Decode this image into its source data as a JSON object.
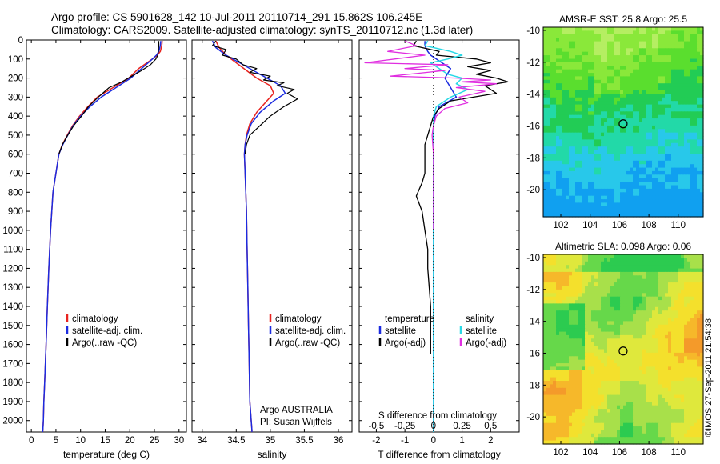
{
  "header": {
    "line1": "Argo profile: CS 5901628_142 10-Jul-2011 20110714_291 15.862S 106.245E",
    "line2": "Climatology: CARS2009. Satellite-adjusted climatology: synTS_20110712.nc (1.3d later)"
  },
  "stamp": "©IMOS 27-Sep-2011 21:54:38",
  "colors": {
    "climatology": "#e8231f",
    "satellite": "#1b2be0",
    "argo": "#000000",
    "sal_satellite": "#29d9e6",
    "sal_argo": "#e02ee0"
  },
  "chart_data": [
    {
      "type": "line",
      "panel": "temperature",
      "xlabel": "temperature (deg C)",
      "ylabel": "",
      "xlim": [
        -1,
        31.5
      ],
      "ylim": [
        2060,
        0
      ],
      "xticks": [
        0,
        5,
        10,
        15,
        20,
        25,
        30
      ],
      "yticks": [
        0,
        100,
        200,
        300,
        400,
        500,
        600,
        700,
        800,
        900,
        1000,
        1100,
        1200,
        1300,
        1400,
        1500,
        1600,
        1700,
        1800,
        1900,
        2000
      ],
      "legend": {
        "placement": "lower-middle",
        "entries": [
          "climatology",
          "satellite-adj. clim.",
          "Argo(..raw -QC)"
        ]
      },
      "series": [
        {
          "name": "climatology",
          "color": "#e8231f",
          "width": 1.5,
          "x": [
            26.6,
            26.5,
            26.2,
            25.6,
            24.6,
            21.8,
            19.8,
            16.6,
            13.4,
            11.5,
            9.8,
            8.4,
            7.3,
            6.3,
            5.6,
            4.4,
            3.9,
            3.55,
            3.25,
            3.0,
            2.7,
            2.55,
            2.45,
            2.35,
            2.3
          ],
          "y": [
            5,
            30,
            60,
            80,
            100,
            150,
            200,
            250,
            300,
            350,
            400,
            450,
            500,
            550,
            600,
            800,
            1000,
            1200,
            1400,
            1600,
            1800,
            1900,
            2000,
            2050,
            2060
          ]
        },
        {
          "name": "satellite-adj. clim.",
          "color": "#1b2be0",
          "width": 1.5,
          "x": [
            26.3,
            26.2,
            25.9,
            25.4,
            24.6,
            22.4,
            20.2,
            17.2,
            14.2,
            11.9,
            10.0,
            8.5,
            7.4,
            6.4,
            5.6,
            4.4,
            3.9,
            3.55,
            3.25,
            3.0,
            2.7,
            2.55,
            2.45,
            2.35,
            2.3
          ],
          "y": [
            5,
            30,
            60,
            80,
            100,
            150,
            200,
            250,
            300,
            350,
            400,
            450,
            500,
            550,
            600,
            800,
            1000,
            1200,
            1400,
            1600,
            1800,
            1900,
            2000,
            2050,
            2060
          ]
        },
        {
          "name": "Argo(..raw -QC)",
          "color": "#000000",
          "width": 1.2,
          "x": [
            25.9,
            25.9,
            25.8,
            25.7,
            25.3,
            24.2,
            22.4,
            20.4,
            18.4,
            15.8,
            13.6,
            11.6,
            10.2,
            8.6,
            7.4,
            6.3,
            5.6
          ],
          "y": [
            5,
            30,
            60,
            80,
            100,
            130,
            160,
            190,
            220,
            250,
            300,
            350,
            400,
            450,
            500,
            550,
            600
          ]
        }
      ]
    },
    {
      "type": "line",
      "panel": "salinity",
      "xlabel": "salinity",
      "xlim": [
        33.85,
        36.2
      ],
      "ylim": [
        2060,
        0
      ],
      "xticks": [
        34,
        34.5,
        35,
        35.5,
        36
      ],
      "legend": {
        "placement": "lower-right",
        "entries": [
          "climatology",
          "satellite-adj. clim.",
          "Argo(..raw -QC)"
        ]
      },
      "annotation": [
        "Argo AUSTRALIA",
        "PI: Susan Wijffels"
      ],
      "series": [
        {
          "name": "climatology",
          "color": "#e8231f",
          "width": 1.5,
          "x": [
            34.2,
            34.25,
            34.35,
            34.5,
            34.65,
            34.8,
            35.0,
            35.05,
            34.95,
            34.8,
            34.7,
            34.65,
            34.63,
            34.62,
            34.63,
            34.65,
            34.66,
            34.67,
            34.68,
            34.69,
            34.7,
            34.72,
            34.73,
            34.73
          ],
          "y": [
            5,
            40,
            80,
            120,
            160,
            200,
            240,
            280,
            320,
            380,
            440,
            500,
            550,
            600,
            700,
            900,
            1100,
            1300,
            1500,
            1700,
            1900,
            2000,
            2050,
            2060
          ]
        },
        {
          "name": "satellite-adj. clim.",
          "color": "#1b2be0",
          "width": 1.5,
          "x": [
            34.15,
            34.2,
            34.35,
            34.55,
            34.75,
            34.95,
            35.15,
            35.22,
            35.05,
            34.85,
            34.72,
            34.66,
            34.63,
            34.62,
            34.63,
            34.65,
            34.66,
            34.67,
            34.68,
            34.69,
            34.7,
            34.72,
            34.73,
            34.73
          ],
          "y": [
            5,
            40,
            80,
            120,
            160,
            200,
            240,
            280,
            320,
            380,
            440,
            500,
            550,
            600,
            700,
            900,
            1100,
            1300,
            1500,
            1700,
            1900,
            2000,
            2050,
            2060
          ]
        },
        {
          "name": "Argo(..raw -QC)",
          "color": "#000000",
          "width": 1.2,
          "x": [
            34.2,
            34.15,
            34.35,
            34.3,
            34.5,
            34.6,
            34.8,
            34.7,
            35.0,
            34.9,
            35.2,
            35.1,
            35.35,
            35.25,
            35.4,
            35.2,
            35.0,
            34.85,
            34.7,
            34.65,
            34.63
          ],
          "y": [
            5,
            30,
            50,
            80,
            100,
            130,
            150,
            170,
            190,
            210,
            225,
            240,
            260,
            280,
            310,
            350,
            400,
            450,
            500,
            550,
            600
          ]
        }
      ]
    },
    {
      "type": "line",
      "panel": "difference",
      "xlabel": "T difference from climatology",
      "xlabel_top": "S difference from climatology",
      "xlim": [
        -2.6,
        3.0
      ],
      "ylim": [
        2060,
        0
      ],
      "xticks": [
        -2,
        -1,
        0,
        1,
        2
      ],
      "sticks_labels": [
        "-0.5",
        "-0.25",
        "0",
        "0.25",
        "0.5"
      ],
      "sticks_positions": [
        -2,
        -1,
        0,
        1,
        2
      ],
      "legend": {
        "placement": "lower",
        "headers": [
          "temperature",
          "salinity"
        ],
        "left_entries": [
          "satellite",
          "Argo(-adj)"
        ],
        "right_entries": [
          "satellite",
          "Argo(-adj)"
        ]
      },
      "series": [
        {
          "name": "T satellite",
          "color": "#1b2be0",
          "width": 1.5,
          "x": [
            -0.3,
            -0.3,
            -0.2,
            -0.1,
            0.1,
            0.6,
            0.4,
            0.6,
            0.8,
            0.2,
            0.05,
            0.0,
            0.0,
            0.0,
            0.0,
            0.0,
            0.0
          ],
          "y": [
            5,
            30,
            60,
            80,
            100,
            150,
            200,
            250,
            300,
            350,
            400,
            450,
            500,
            600,
            1000,
            1600,
            2060
          ]
        },
        {
          "name": "T Argo(-adj)",
          "color": "#000000",
          "width": 1.3,
          "x": [
            -0.6,
            -0.7,
            0.2,
            0.1,
            1.5,
            2.0,
            1.2,
            2.0,
            1.5,
            2.2,
            2.6,
            1.8,
            2.0,
            2.2,
            0.6,
            0.2,
            0.0,
            -0.1,
            -0.2,
            -0.3,
            -0.3,
            -0.3,
            -0.3,
            -0.4,
            -0.6,
            -0.4,
            -0.3,
            -0.2,
            -0.2,
            -0.15,
            -0.1,
            -0.1,
            -0.1,
            -0.1
          ],
          "y": [
            5,
            30,
            60,
            80,
            100,
            120,
            140,
            160,
            180,
            200,
            220,
            240,
            260,
            280,
            320,
            360,
            400,
            450,
            500,
            550,
            600,
            650,
            700,
            750,
            820,
            900,
            1000,
            1100,
            1200,
            1300,
            1400,
            1500,
            1600,
            1650
          ]
        },
        {
          "name": "S satellite",
          "color": "#29d9e6",
          "width": 1.5,
          "x": [
            -0.2,
            -0.3,
            0.6,
            1.0,
            0.5,
            -0.1,
            0.2,
            0.5,
            1.0,
            0.8,
            1.2,
            0.6,
            0.1,
            0.0,
            0.0,
            0.0,
            0.0,
            0.0
          ],
          "y": [
            5,
            30,
            60,
            80,
            100,
            120,
            150,
            180,
            200,
            230,
            260,
            300,
            350,
            400,
            600,
            1000,
            1600,
            2060
          ]
        },
        {
          "name": "S Argo(-adj)",
          "color": "#e02ee0",
          "width": 1.3,
          "x": [
            -1.0,
            -0.6,
            -1.6,
            -0.3,
            -2.4,
            0.5,
            -1.0,
            0.4,
            -1.5,
            0.8,
            2.0,
            1.0,
            2.2,
            0.8,
            1.8,
            0.9,
            1.2,
            0.4,
            0.1,
            0.0,
            -0.05,
            0.0,
            0.0,
            0.0
          ],
          "y": [
            5,
            30,
            60,
            80,
            120,
            130,
            150,
            160,
            190,
            200,
            210,
            220,
            230,
            250,
            270,
            300,
            330,
            360,
            400,
            450,
            500,
            600,
            800,
            1000
          ]
        }
      ]
    },
    {
      "type": "heatmap",
      "panel": "sst",
      "title": "AMSR-E SST: 25.8 Argo: 25.5",
      "xlim": [
        100.8,
        111.7
      ],
      "ylim": [
        -21.7,
        -9.8
      ],
      "xticks": [
        102,
        104,
        106,
        108,
        110
      ],
      "yticks": [
        -10,
        -12,
        -14,
        -16,
        -18,
        -20
      ],
      "marker": {
        "lon": 106.245,
        "lat": -15.862
      },
      "palette": [
        "#10a0f0",
        "#28c8ea",
        "#22d9a8",
        "#22cc55",
        "#5ade2e",
        "#8ae83a",
        "#b5ee62"
      ]
    },
    {
      "type": "heatmap",
      "panel": "sla",
      "title": "Altimetric SLA: 0.098 Argo: 0.06",
      "xlim": [
        100.8,
        111.7
      ],
      "ylim": [
        -21.7,
        -9.8
      ],
      "xticks": [
        102,
        104,
        106,
        108,
        110
      ],
      "yticks": [
        -10,
        -12,
        -14,
        -16,
        -18,
        -20
      ],
      "marker": {
        "lon": 106.245,
        "lat": -15.862
      },
      "palette": [
        "#2ccb50",
        "#66d84a",
        "#a8e04a",
        "#dfe83c",
        "#f4e02c",
        "#f6b82a",
        "#f49a2a"
      ]
    }
  ]
}
